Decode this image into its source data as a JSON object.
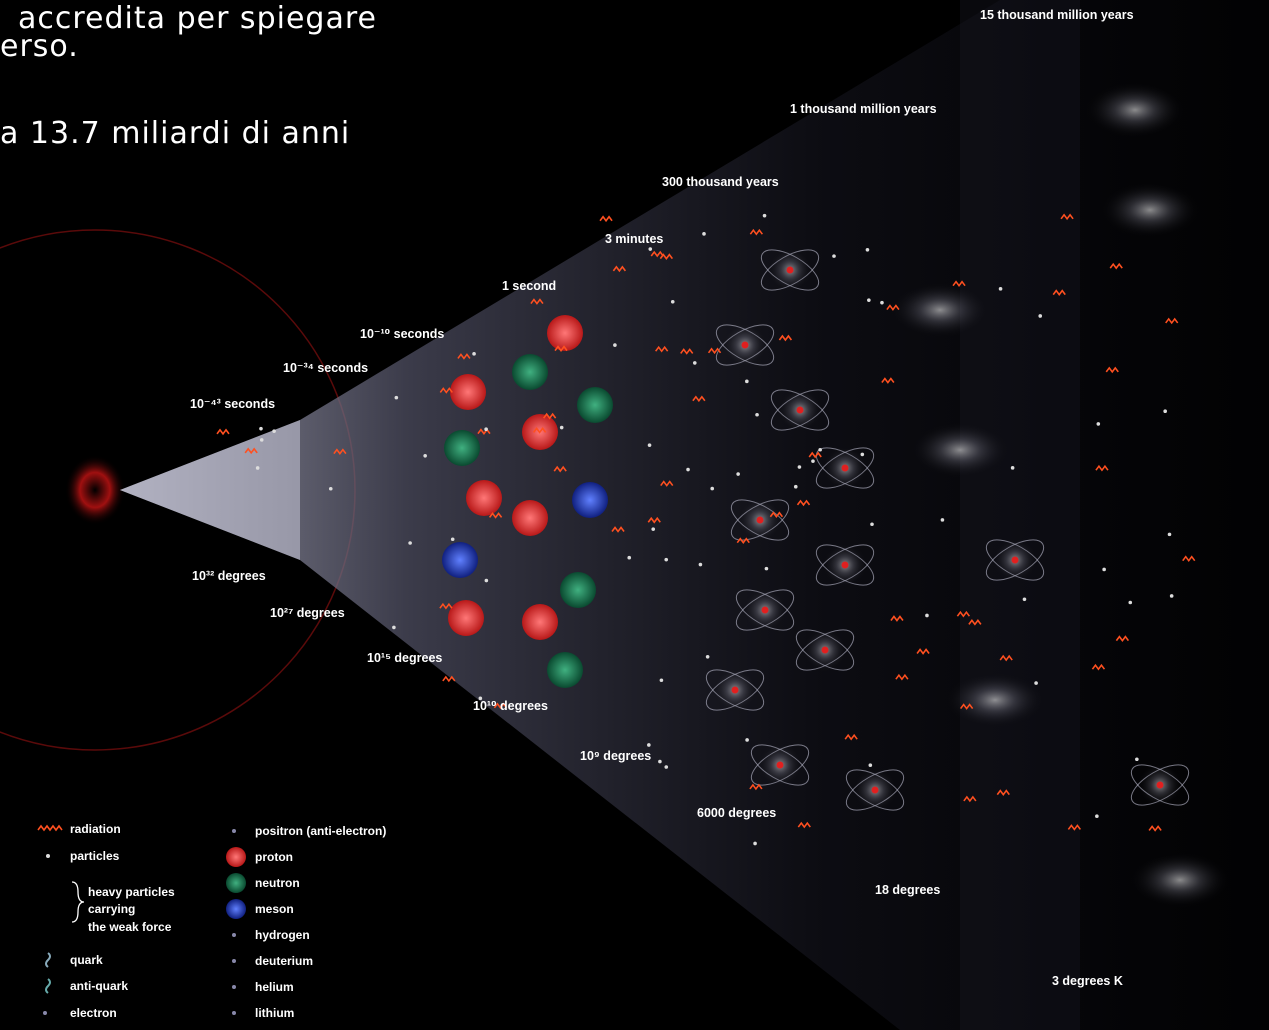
{
  "slide_text": [
    "accredita per spiegare",
    "erso.",
    "a 13.7 miliardi di anni"
  ],
  "time_labels": [
    "15 thousand million years",
    "1 thousand million years",
    "300 thousand years",
    "3 minutes",
    "1 second",
    "10⁻¹⁰ seconds",
    "10⁻³⁴ seconds",
    "10⁻⁴³ seconds"
  ],
  "temperature_labels": [
    "10³² degrees",
    "10²⁷ degrees",
    "10¹⁵ degrees",
    "10¹⁰ degrees",
    "10⁹ degrees",
    "6000 degrees",
    "18 degrees",
    "3 degrees K"
  ],
  "legend": {
    "left": [
      "radiation",
      "particles",
      "heavy particles",
      "carrying",
      "the weak force",
      "quark",
      "anti-quark",
      "electron"
    ],
    "right": [
      "positron (anti-electron)",
      "proton",
      "neutron",
      "meson",
      "hydrogen",
      "deuterium",
      "helium",
      "lithium"
    ]
  }
}
